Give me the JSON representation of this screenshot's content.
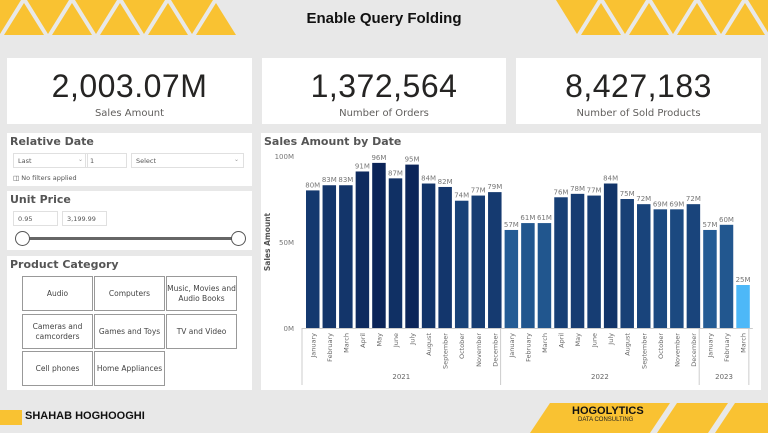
{
  "header": {
    "title": "Enable Query Folding",
    "accent_color": "#f9c232"
  },
  "kpis": [
    {
      "value": "2,003.07M",
      "label": "Sales Amount"
    },
    {
      "value": "1,372,564",
      "label": "Number of Orders"
    },
    {
      "value": "8,427,183",
      "label": "Number of Sold Products"
    }
  ],
  "relative_date": {
    "title": "Relative Date",
    "mode": "Last",
    "count": "1",
    "unit": "Select",
    "status": "No filters applied",
    "status_icon": "filter-icon"
  },
  "unit_price": {
    "title": "Unit Price",
    "min": "0.95",
    "max": "3,199.99"
  },
  "product_category": {
    "title": "Product Category",
    "items": [
      "Audio",
      "Computers",
      "Music, Movies and Audio Books",
      "Cameras and camcorders",
      "Games and Toys",
      "TV and Video",
      "Cell phones",
      "Home Appliances"
    ]
  },
  "chart_data": {
    "type": "bar",
    "title": "Sales Amount by Date",
    "ylabel": "Sales Amount",
    "xlabel": "",
    "ylim": [
      0,
      100
    ],
    "yticks": [
      "0M",
      "50M",
      "100M"
    ],
    "grid": false,
    "categories": [
      "January",
      "February",
      "March",
      "April",
      "May",
      "June",
      "July",
      "August",
      "September",
      "October",
      "November",
      "December",
      "January",
      "February",
      "March",
      "April",
      "May",
      "June",
      "July",
      "August",
      "September",
      "October",
      "November",
      "December",
      "January",
      "February",
      "March"
    ],
    "years": [
      {
        "label": "2021",
        "count": 12
      },
      {
        "label": "2022",
        "count": 12
      },
      {
        "label": "2023",
        "count": 3
      }
    ],
    "values": [
      80,
      83,
      83,
      91,
      96,
      87,
      95,
      84,
      82,
      74,
      77,
      79,
      57,
      61,
      61,
      76,
      78,
      77,
      84,
      75,
      72,
      69,
      69,
      72,
      57,
      60,
      25
    ],
    "labels": [
      "80M",
      "83M",
      "83M",
      "91M",
      "96M",
      "87M",
      "95M",
      "84M",
      "82M",
      "74M",
      "77M",
      "79M",
      "57M",
      "61M",
      "61M",
      "76M",
      "78M",
      "77M",
      "84M",
      "75M",
      "72M",
      "69M",
      "69M",
      "72M",
      "57M",
      "60M",
      "25M"
    ],
    "color_low": "#4db8f8",
    "color_high": "#0b2458"
  },
  "footer": {
    "author": "SHAHAB HOGHOOGHI",
    "logo_main": "HOGOLYTICS",
    "logo_sub": "DATA CONSULTING"
  }
}
